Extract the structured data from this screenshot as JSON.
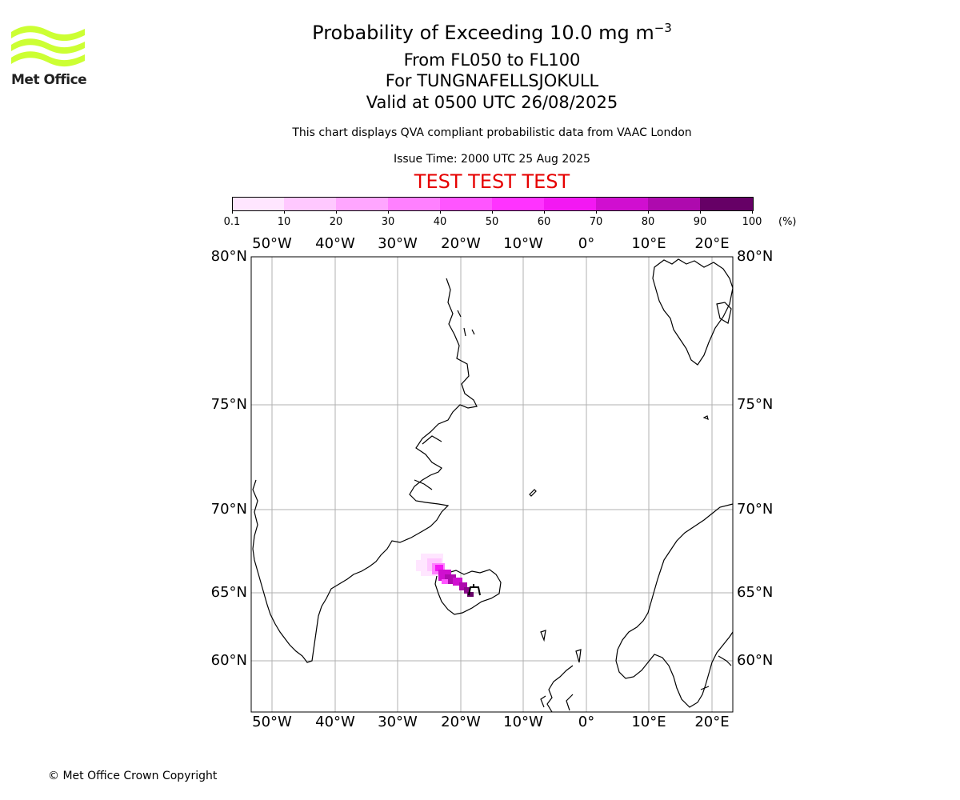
{
  "header": {
    "title_main": "Probability of Exceeding 10.0 mg m",
    "title_exp": "−3",
    "levels": "From FL050 to FL100",
    "volcano": "For TUNGNAFELLSJOKULL",
    "valid": "Valid at 0500 UTC 26/08/2025",
    "description": "This chart displays QVA compliant probabilistic data from VAAC London",
    "issue_time": "Issue Time: 2000 UTC 25 Aug 2025",
    "test_banner": "TEST TEST TEST"
  },
  "logo": {
    "text": "Met Office",
    "color": "#ccff33"
  },
  "colorbar": {
    "tick_labels": [
      "0.1",
      "10",
      "20",
      "30",
      "40",
      "50",
      "60",
      "70",
      "80",
      "90",
      "100"
    ],
    "unit": "(%)",
    "colors": [
      "#ffe6ff",
      "#ffc8ff",
      "#ffa6ff",
      "#ff80ff",
      "#ff55ff",
      "#ff33ff",
      "#f318f3",
      "#d00fd0",
      "#ae0aae",
      "#8a0a8a",
      "#660066"
    ]
  },
  "map": {
    "lon_labels": [
      "50°W",
      "40°W",
      "30°W",
      "20°W",
      "10°W",
      "0°",
      "10°E",
      "20°E"
    ],
    "lat_labels": [
      "80°N",
      "75°N",
      "70°N",
      "65°N",
      "60°N"
    ],
    "grid_color": "#b0b0b0"
  },
  "footer": {
    "copyright": "© Met Office Crown Copyright"
  }
}
